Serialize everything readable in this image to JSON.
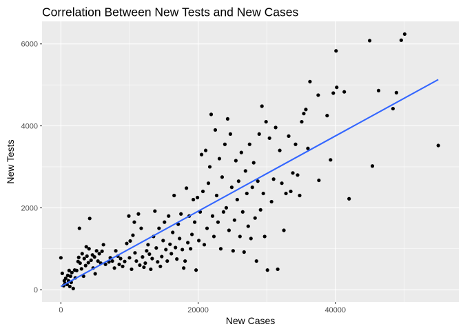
{
  "chart_data": {
    "type": "scatter",
    "title": "Correlation Between New Tests and New Cases",
    "xlabel": "New Cases",
    "ylabel": "New Tests",
    "xlim": [
      -2750,
      58000
    ],
    "ylim": [
      -300,
      6550
    ],
    "x_ticks": [
      0,
      20000,
      40000
    ],
    "x_tick_labels": [
      "0",
      "20000",
      "40000"
    ],
    "y_ticks": [
      0,
      2000,
      4000,
      6000
    ],
    "y_tick_labels": [
      "0",
      "2000",
      "4000",
      "6000"
    ],
    "grid": true,
    "legend": "none",
    "colors": {
      "panel": "#ebebeb",
      "grid": "#ffffff",
      "points": "#000000",
      "trend": "#3366ff"
    },
    "trend_line": {
      "x": [
        0,
        55000
      ],
      "y": [
        80,
        5130
      ]
    },
    "points": [
      {
        "x": 0,
        "y": 780
      },
      {
        "x": 200,
        "y": 400
      },
      {
        "x": 400,
        "y": 100
      },
      {
        "x": 500,
        "y": 220
      },
      {
        "x": 600,
        "y": 150
      },
      {
        "x": 700,
        "y": 280
      },
      {
        "x": 900,
        "y": 130
      },
      {
        "x": 1000,
        "y": 350
      },
      {
        "x": 1100,
        "y": 220
      },
      {
        "x": 1200,
        "y": 470
      },
      {
        "x": 1300,
        "y": 80
      },
      {
        "x": 1400,
        "y": 330
      },
      {
        "x": 1500,
        "y": 180
      },
      {
        "x": 1600,
        "y": 420
      },
      {
        "x": 1800,
        "y": 30
      },
      {
        "x": 2000,
        "y": 480
      },
      {
        "x": 2100,
        "y": 290
      },
      {
        "x": 2300,
        "y": 470
      },
      {
        "x": 2500,
        "y": 690
      },
      {
        "x": 2600,
        "y": 790
      },
      {
        "x": 2700,
        "y": 1500
      },
      {
        "x": 2800,
        "y": 650
      },
      {
        "x": 3000,
        "y": 510
      },
      {
        "x": 3100,
        "y": 880
      },
      {
        "x": 3300,
        "y": 330
      },
      {
        "x": 3400,
        "y": 760
      },
      {
        "x": 3600,
        "y": 590
      },
      {
        "x": 3700,
        "y": 1050
      },
      {
        "x": 3800,
        "y": 820
      },
      {
        "x": 4000,
        "y": 660
      },
      {
        "x": 4100,
        "y": 1000
      },
      {
        "x": 4200,
        "y": 1740
      },
      {
        "x": 4400,
        "y": 720
      },
      {
        "x": 4600,
        "y": 850
      },
      {
        "x": 4700,
        "y": 530
      },
      {
        "x": 4900,
        "y": 800
      },
      {
        "x": 5000,
        "y": 390
      },
      {
        "x": 5200,
        "y": 950
      },
      {
        "x": 5400,
        "y": 700
      },
      {
        "x": 5600,
        "y": 880
      },
      {
        "x": 5800,
        "y": 650
      },
      {
        "x": 6000,
        "y": 940
      },
      {
        "x": 6200,
        "y": 1100
      },
      {
        "x": 6500,
        "y": 620
      },
      {
        "x": 7000,
        "y": 680
      },
      {
        "x": 7200,
        "y": 780
      },
      {
        "x": 7500,
        "y": 700
      },
      {
        "x": 7800,
        "y": 530
      },
      {
        "x": 8000,
        "y": 950
      },
      {
        "x": 8300,
        "y": 820
      },
      {
        "x": 8500,
        "y": 620
      },
      {
        "x": 8700,
        "y": 760
      },
      {
        "x": 9000,
        "y": 570
      },
      {
        "x": 9300,
        "y": 690
      },
      {
        "x": 9600,
        "y": 1130
      },
      {
        "x": 9900,
        "y": 1800
      },
      {
        "x": 10000,
        "y": 780
      },
      {
        "x": 10100,
        "y": 1190
      },
      {
        "x": 10300,
        "y": 500
      },
      {
        "x": 10500,
        "y": 1330
      },
      {
        "x": 10700,
        "y": 1650
      },
      {
        "x": 10800,
        "y": 900
      },
      {
        "x": 11000,
        "y": 700
      },
      {
        "x": 11300,
        "y": 1850
      },
      {
        "x": 11500,
        "y": 600
      },
      {
        "x": 11700,
        "y": 1500
      },
      {
        "x": 11900,
        "y": 800
      },
      {
        "x": 12100,
        "y": 550
      },
      {
        "x": 12300,
        "y": 650
      },
      {
        "x": 12500,
        "y": 950
      },
      {
        "x": 12700,
        "y": 1100
      },
      {
        "x": 12900,
        "y": 870
      },
      {
        "x": 13100,
        "y": 500
      },
      {
        "x": 13300,
        "y": 760
      },
      {
        "x": 13500,
        "y": 1300
      },
      {
        "x": 13700,
        "y": 1920
      },
      {
        "x": 13900,
        "y": 1020
      },
      {
        "x": 14100,
        "y": 680
      },
      {
        "x": 14300,
        "y": 1500
      },
      {
        "x": 14500,
        "y": 570
      },
      {
        "x": 14700,
        "y": 810
      },
      {
        "x": 14900,
        "y": 1200
      },
      {
        "x": 15100,
        "y": 1650
      },
      {
        "x": 15300,
        "y": 980
      },
      {
        "x": 15500,
        "y": 700
      },
      {
        "x": 15700,
        "y": 1800
      },
      {
        "x": 15900,
        "y": 1110
      },
      {
        "x": 16100,
        "y": 880
      },
      {
        "x": 16300,
        "y": 1400
      },
      {
        "x": 16500,
        "y": 2300
      },
      {
        "x": 16700,
        "y": 1030
      },
      {
        "x": 16900,
        "y": 750
      },
      {
        "x": 17100,
        "y": 1600
      },
      {
        "x": 17300,
        "y": 1250
      },
      {
        "x": 17500,
        "y": 1850
      },
      {
        "x": 17700,
        "y": 980
      },
      {
        "x": 17900,
        "y": 530
      },
      {
        "x": 18100,
        "y": 700
      },
      {
        "x": 18300,
        "y": 2480
      },
      {
        "x": 18500,
        "y": 1150
      },
      {
        "x": 18700,
        "y": 1800
      },
      {
        "x": 18900,
        "y": 1000
      },
      {
        "x": 19100,
        "y": 1350
      },
      {
        "x": 19300,
        "y": 2200
      },
      {
        "x": 19500,
        "y": 1650
      },
      {
        "x": 19700,
        "y": 480
      },
      {
        "x": 19900,
        "y": 2250
      },
      {
        "x": 20100,
        "y": 1200
      },
      {
        "x": 20300,
        "y": 1900
      },
      {
        "x": 20500,
        "y": 3300
      },
      {
        "x": 20700,
        "y": 2400
      },
      {
        "x": 20900,
        "y": 1100
      },
      {
        "x": 21100,
        "y": 3400
      },
      {
        "x": 21300,
        "y": 1500
      },
      {
        "x": 21500,
        "y": 2600
      },
      {
        "x": 21700,
        "y": 3000
      },
      {
        "x": 21900,
        "y": 4280
      },
      {
        "x": 22100,
        "y": 1800
      },
      {
        "x": 22300,
        "y": 1300
      },
      {
        "x": 22500,
        "y": 3900
      },
      {
        "x": 22700,
        "y": 2300
      },
      {
        "x": 22900,
        "y": 1650
      },
      {
        "x": 23100,
        "y": 3200
      },
      {
        "x": 23300,
        "y": 1000
      },
      {
        "x": 23500,
        "y": 2750
      },
      {
        "x": 23700,
        "y": 1900
      },
      {
        "x": 23900,
        "y": 3550
      },
      {
        "x": 24100,
        "y": 2000
      },
      {
        "x": 24300,
        "y": 4170
      },
      {
        "x": 24500,
        "y": 1450
      },
      {
        "x": 24700,
        "y": 3800
      },
      {
        "x": 24900,
        "y": 2500
      },
      {
        "x": 25100,
        "y": 950
      },
      {
        "x": 25300,
        "y": 1700
      },
      {
        "x": 25500,
        "y": 3150
      },
      {
        "x": 25700,
        "y": 2200
      },
      {
        "x": 25900,
        "y": 2650
      },
      {
        "x": 26100,
        "y": 1300
      },
      {
        "x": 26300,
        "y": 3350
      },
      {
        "x": 26500,
        "y": 1900
      },
      {
        "x": 26700,
        "y": 920
      },
      {
        "x": 26900,
        "y": 2900
      },
      {
        "x": 27100,
        "y": 2350
      },
      {
        "x": 27300,
        "y": 1550
      },
      {
        "x": 27500,
        "y": 3550
      },
      {
        "x": 27700,
        "y": 1250
      },
      {
        "x": 27900,
        "y": 2500
      },
      {
        "x": 28100,
        "y": 3100
      },
      {
        "x": 28300,
        "y": 1750
      },
      {
        "x": 28500,
        "y": 700
      },
      {
        "x": 28700,
        "y": 2650
      },
      {
        "x": 28900,
        "y": 3800
      },
      {
        "x": 29100,
        "y": 1950
      },
      {
        "x": 29300,
        "y": 4480
      },
      {
        "x": 29500,
        "y": 2350
      },
      {
        "x": 29700,
        "y": 1300
      },
      {
        "x": 29900,
        "y": 4100
      },
      {
        "x": 30100,
        "y": 480
      },
      {
        "x": 30400,
        "y": 3700
      },
      {
        "x": 30700,
        "y": 2150
      },
      {
        "x": 31000,
        "y": 2700
      },
      {
        "x": 31300,
        "y": 3960
      },
      {
        "x": 31600,
        "y": 500
      },
      {
        "x": 31900,
        "y": 3400
      },
      {
        "x": 32200,
        "y": 2600
      },
      {
        "x": 32500,
        "y": 1450
      },
      {
        "x": 32800,
        "y": 2350
      },
      {
        "x": 33200,
        "y": 3750
      },
      {
        "x": 33500,
        "y": 2400
      },
      {
        "x": 33800,
        "y": 2850
      },
      {
        "x": 34200,
        "y": 3550
      },
      {
        "x": 34500,
        "y": 2800
      },
      {
        "x": 34800,
        "y": 2300
      },
      {
        "x": 35100,
        "y": 4100
      },
      {
        "x": 35400,
        "y": 4300
      },
      {
        "x": 35700,
        "y": 4400
      },
      {
        "x": 36000,
        "y": 3450
      },
      {
        "x": 36300,
        "y": 5080
      },
      {
        "x": 37500,
        "y": 4750
      },
      {
        "x": 37600,
        "y": 2670
      },
      {
        "x": 38800,
        "y": 4250
      },
      {
        "x": 39300,
        "y": 3170
      },
      {
        "x": 39700,
        "y": 4800
      },
      {
        "x": 40100,
        "y": 5830
      },
      {
        "x": 40200,
        "y": 4940
      },
      {
        "x": 41300,
        "y": 4830
      },
      {
        "x": 42000,
        "y": 2220
      },
      {
        "x": 45000,
        "y": 6080
      },
      {
        "x": 45400,
        "y": 3020
      },
      {
        "x": 46300,
        "y": 4860
      },
      {
        "x": 48400,
        "y": 4420
      },
      {
        "x": 48900,
        "y": 4810
      },
      {
        "x": 49600,
        "y": 6090
      },
      {
        "x": 50100,
        "y": 6240
      },
      {
        "x": 55000,
        "y": 3520
      }
    ]
  }
}
